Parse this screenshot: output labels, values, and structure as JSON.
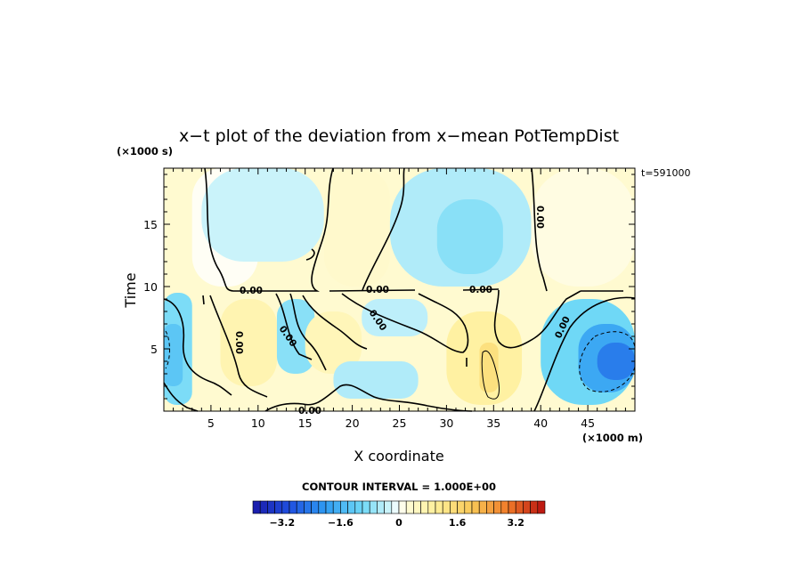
{
  "chart_data": {
    "type": "heatmap",
    "title": "x−t plot of the deviation from x−mean PotTempDist",
    "xlabel": "X coordinate",
    "ylabel": "Time",
    "x_unit": "(×1000 m)",
    "y_unit": "(×1000 s)",
    "time_stamp": "t=591000",
    "xlim": [
      0,
      50
    ],
    "ylim": [
      0,
      19.5
    ],
    "x_ticks": [
      5,
      10,
      15,
      20,
      25,
      30,
      35,
      40,
      45
    ],
    "y_ticks": [
      5,
      10,
      15
    ],
    "contour_interval_label": "CONTOUR INTERVAL = 1.000E+00",
    "contour_label": "0.00",
    "colorbar": {
      "min": -4.0,
      "max": 4.0,
      "step": 0.2,
      "tick_values": [
        -3.2,
        -1.6,
        0,
        1.6,
        3.2
      ],
      "tick_labels": [
        "−3.2",
        "−1.6",
        "0",
        "1.6",
        "3.2"
      ],
      "anchor_colors": [
        {
          "v": -4.0,
          "c": "#1a1aa8"
        },
        {
          "v": -3.0,
          "c": "#1f4fe0"
        },
        {
          "v": -2.0,
          "c": "#2f9cf2"
        },
        {
          "v": -1.0,
          "c": "#6fd8f6"
        },
        {
          "v": -0.2,
          "c": "#d7f7fb"
        },
        {
          "v": 0.0,
          "c": "#ffffff"
        },
        {
          "v": 0.2,
          "c": "#fffbd8"
        },
        {
          "v": 1.0,
          "c": "#fff09a"
        },
        {
          "v": 2.0,
          "c": "#f8c857"
        },
        {
          "v": 3.0,
          "c": "#f07a28"
        },
        {
          "v": 4.0,
          "c": "#b81010"
        }
      ]
    },
    "field_regions": [
      {
        "x": [
          0,
          50
        ],
        "y": [
          0,
          19.5
        ],
        "value": 0.3
      },
      {
        "x": [
          3,
          10
        ],
        "y": [
          10,
          19.5
        ],
        "value": 0.05
      },
      {
        "x": [
          4,
          17
        ],
        "y": [
          12,
          19.5
        ],
        "value": -0.3
      },
      {
        "x": [
          17,
          24
        ],
        "y": [
          10,
          19.5
        ],
        "value": 0.35
      },
      {
        "x": [
          24,
          39
        ],
        "y": [
          10,
          19.5
        ],
        "value": -0.5
      },
      {
        "x": [
          29,
          36
        ],
        "y": [
          11,
          17
        ],
        "value": -0.8
      },
      {
        "x": [
          39,
          50
        ],
        "y": [
          10,
          19.5
        ],
        "value": 0.15
      },
      {
        "x": [
          0,
          3
        ],
        "y": [
          0.5,
          9.5
        ],
        "value": -0.9
      },
      {
        "x": [
          0,
          2
        ],
        "y": [
          2,
          7
        ],
        "value": -1.3
      },
      {
        "x": [
          6,
          12
        ],
        "y": [
          2,
          9
        ],
        "value": 0.7
      },
      {
        "x": [
          12,
          16
        ],
        "y": [
          3,
          9
        ],
        "value": -0.8
      },
      {
        "x": [
          15,
          21
        ],
        "y": [
          3,
          8
        ],
        "value": 0.6
      },
      {
        "x": [
          18,
          27
        ],
        "y": [
          1,
          4
        ],
        "value": -0.5
      },
      {
        "x": [
          21,
          28
        ],
        "y": [
          6,
          9
        ],
        "value": -0.4
      },
      {
        "x": [
          30,
          38
        ],
        "y": [
          0.5,
          8
        ],
        "value": 0.9
      },
      {
        "x": [
          33.5,
          35.5
        ],
        "y": [
          1.5,
          5.5
        ],
        "value": 1.4
      },
      {
        "x": [
          40,
          50
        ],
        "y": [
          0.5,
          9
        ],
        "value": -1.0
      },
      {
        "x": [
          44,
          50
        ],
        "y": [
          1.5,
          7
        ],
        "value": -1.8
      },
      {
        "x": [
          46,
          50
        ],
        "y": [
          2.5,
          5.5
        ],
        "value": -2.4
      }
    ]
  }
}
